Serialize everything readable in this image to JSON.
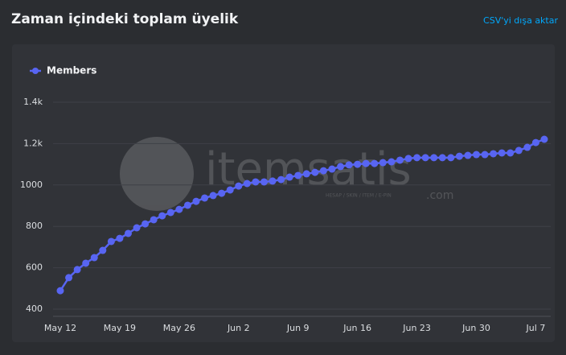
{
  "header": {
    "title": "Zaman içindeki toplam üyelik",
    "export": "CSV'yi dışa aktar"
  },
  "watermark": {
    "brand": "itemsatis",
    "tagline": "HESAP / SKIN / ITEM / E-PIN",
    "domain": ".com"
  },
  "chart_data": {
    "type": "line",
    "categories": [
      "May 12",
      null,
      null,
      null,
      null,
      null,
      null,
      "May 19",
      null,
      null,
      null,
      null,
      null,
      null,
      "May 26",
      null,
      null,
      null,
      null,
      null,
      null,
      "Jun 2",
      null,
      null,
      null,
      null,
      null,
      null,
      "Jun 9",
      null,
      null,
      null,
      null,
      null,
      null,
      "Jun 16",
      null,
      null,
      null,
      null,
      null,
      null,
      "Jun 23",
      null,
      null,
      null,
      null,
      null,
      null,
      "Jun 30",
      null,
      null,
      null,
      null,
      null,
      null,
      "Jul 7",
      null
    ],
    "series": [
      {
        "name": "Members",
        "color": "#5865f2",
        "values": [
          489,
          552,
          591,
          622,
          649,
          684,
          727,
          742,
          766,
          793,
          812,
          832,
          851,
          867,
          882,
          902,
          921,
          937,
          949,
          960,
          976,
          995,
          1007,
          1015,
          1015,
          1019,
          1026,
          1038,
          1046,
          1054,
          1061,
          1069,
          1077,
          1089,
          1097,
          1100,
          1104,
          1104,
          1108,
          1112,
          1120,
          1128,
          1132,
          1132,
          1132,
          1132,
          1132,
          1139,
          1143,
          1147,
          1147,
          1151,
          1155,
          1155,
          1167,
          1182,
          1205,
          1221
        ]
      }
    ],
    "ylim": [
      400,
      1400
    ],
    "yticks": [
      400,
      600,
      800,
      1000,
      {
        "value": 1200,
        "label": "1.2k"
      },
      {
        "value": 1400,
        "label": "1.4k"
      }
    ],
    "grid": true,
    "legend": "top-left"
  }
}
